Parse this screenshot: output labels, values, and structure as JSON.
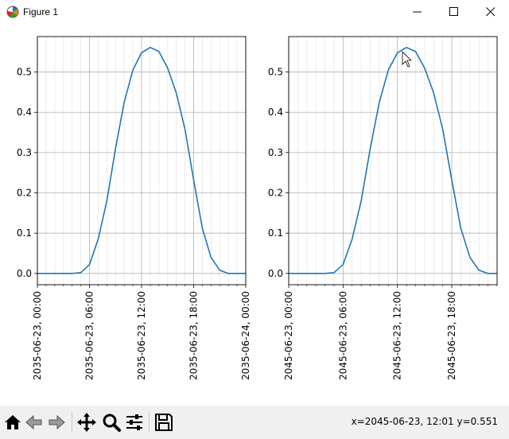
{
  "window": {
    "title": "Figure 1",
    "icon": "matplotlib-icon",
    "controls": [
      "minimize-icon",
      "maximize-icon",
      "close-icon"
    ]
  },
  "toolbar": {
    "buttons": [
      {
        "name": "home-button",
        "icon": "home-icon"
      },
      {
        "name": "back-button",
        "icon": "back-arrow-icon"
      },
      {
        "name": "forward-button",
        "icon": "forward-arrow-icon"
      },
      {
        "name": "pan-button",
        "icon": "pan-move-icon"
      },
      {
        "name": "zoom-button",
        "icon": "zoom-magnifier-icon"
      },
      {
        "name": "configure-subplots-button",
        "icon": "sliders-icon"
      },
      {
        "name": "save-button",
        "icon": "floppy-disk-icon"
      }
    ],
    "coordinates": "x=2045-06-23, 12:01 y=0.551"
  },
  "colors": {
    "line": "#1f77b4",
    "grid_major": "#b0b0b0",
    "grid_minor": "#e6e6e6",
    "toolbar_bg": "#f0f0f0"
  },
  "chart_data": [
    {
      "type": "line",
      "title": "",
      "xlabel": "",
      "ylabel": "",
      "grid": true,
      "xlim": [
        "2035-06-23 00:00",
        "2035-06-24 00:00"
      ],
      "ylim": [
        -0.028,
        0.588
      ],
      "y_ticks": [
        0.0,
        0.1,
        0.2,
        0.3,
        0.4,
        0.5
      ],
      "y_tick_labels": [
        "0.0",
        "0.1",
        "0.2",
        "0.3",
        "0.4",
        "0.5"
      ],
      "x_ticks_hours": [
        0,
        6,
        12,
        18,
        24
      ],
      "x_tick_labels": [
        "2035-06-23, 00:00",
        "2035-06-23, 06:00",
        "2035-06-23, 12:00",
        "2035-06-23, 18:00",
        "2035-06-24, 00:00"
      ],
      "x_hours": [
        0,
        1,
        2,
        3,
        4,
        5,
        6,
        7,
        8,
        9,
        10,
        11,
        12,
        13,
        14,
        15,
        16,
        17,
        18,
        19,
        20,
        21,
        22,
        23,
        24
      ],
      "values": [
        0.0,
        0.0,
        0.0,
        0.0,
        0.0,
        0.002,
        0.022,
        0.085,
        0.18,
        0.31,
        0.425,
        0.505,
        0.548,
        0.561,
        0.551,
        0.51,
        0.448,
        0.358,
        0.232,
        0.112,
        0.04,
        0.008,
        0.0,
        0.0,
        0.0
      ]
    },
    {
      "type": "line",
      "title": "",
      "xlabel": "",
      "ylabel": "",
      "grid": true,
      "xlim": [
        "2045-06-23 00:00",
        "2045-06-23 23:00"
      ],
      "ylim": [
        -0.028,
        0.588
      ],
      "y_ticks": [
        0.0,
        0.1,
        0.2,
        0.3,
        0.4,
        0.5
      ],
      "y_tick_labels": [
        "0.0",
        "0.1",
        "0.2",
        "0.3",
        "0.4",
        "0.5"
      ],
      "x_ticks_hours": [
        0,
        6,
        12,
        18
      ],
      "x_tick_labels": [
        "2045-06-23, 00:00",
        "2045-06-23, 06:00",
        "2045-06-23, 12:00",
        "2045-06-23, 18:00"
      ],
      "x_hours": [
        0,
        1,
        2,
        3,
        4,
        5,
        6,
        7,
        8,
        9,
        10,
        11,
        12,
        13,
        14,
        15,
        16,
        17,
        18,
        19,
        20,
        21,
        22,
        23
      ],
      "values": [
        0.0,
        0.0,
        0.0,
        0.0,
        0.0,
        0.002,
        0.022,
        0.085,
        0.18,
        0.31,
        0.425,
        0.505,
        0.548,
        0.561,
        0.551,
        0.51,
        0.448,
        0.358,
        0.232,
        0.112,
        0.04,
        0.008,
        0.0,
        0.0
      ]
    }
  ]
}
